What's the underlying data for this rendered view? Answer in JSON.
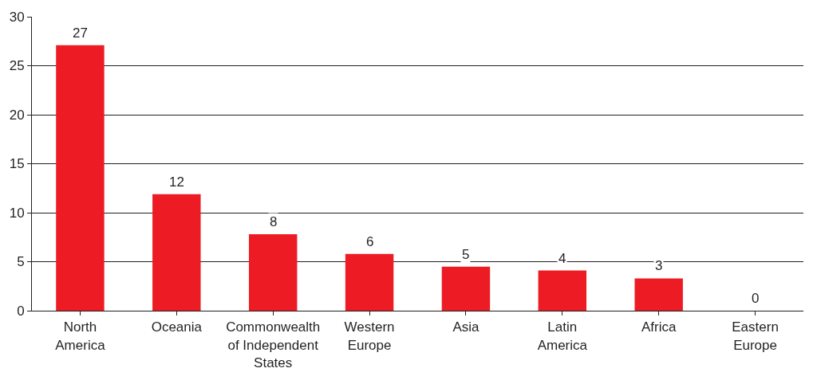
{
  "chart_data": {
    "type": "bar",
    "categories": [
      "North\nAmerica",
      "Oceania",
      "Commonwealth\nof Independent\nStates",
      "Western\nEurope",
      "Asia",
      "Latin\nAmerica",
      "Africa",
      "Eastern\nEurope"
    ],
    "values": [
      27.1,
      11.9,
      7.8,
      5.8,
      4.5,
      4.1,
      3.3,
      0
    ],
    "value_labels": [
      "27",
      "12",
      "8",
      "6",
      "5",
      "4",
      "3",
      "0"
    ],
    "color": "#ed1c24",
    "ylim": [
      0,
      30
    ],
    "yticks": [
      0,
      5,
      10,
      15,
      20,
      25,
      30
    ],
    "grid": "y"
  }
}
